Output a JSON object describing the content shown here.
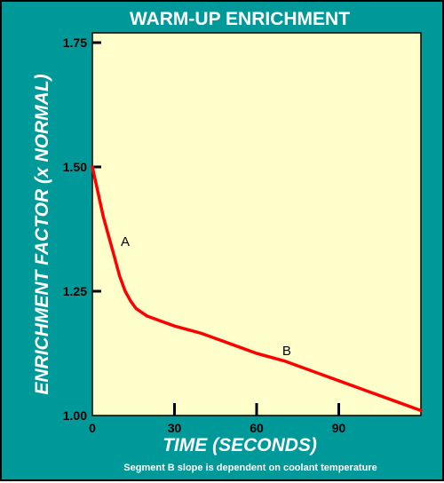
{
  "chart_data": {
    "type": "line",
    "title": "WARM-UP ENRICHMENT",
    "xlabel": "TIME (SECONDS)",
    "ylabel": "ENRICHMENT FACTOR (x NORMAL)",
    "xlim": [
      0,
      120
    ],
    "ylim": [
      1.0,
      1.8
    ],
    "x_ticks": [
      0,
      30,
      60,
      90
    ],
    "x_tick_labels": [
      "0",
      "30",
      "60",
      "90"
    ],
    "y_ticks": [
      1.0,
      1.25,
      1.5,
      1.75
    ],
    "y_tick_labels": [
      "1.00",
      "1.25",
      "1.50",
      "1.75"
    ],
    "grid": false,
    "series": [
      {
        "x": [
          0,
          2,
          4,
          6,
          8,
          10,
          12,
          14,
          16,
          20,
          25,
          30,
          40,
          50,
          60,
          70,
          80,
          90,
          100,
          110,
          120
        ],
        "y": [
          1.5,
          1.45,
          1.4,
          1.36,
          1.32,
          1.28,
          1.25,
          1.23,
          1.215,
          1.2,
          1.19,
          1.18,
          1.165,
          1.145,
          1.125,
          1.11,
          1.09,
          1.07,
          1.05,
          1.03,
          1.01
        ]
      }
    ],
    "annotations": [
      {
        "text": "A",
        "x": 12,
        "y": 1.35
      },
      {
        "text": "B",
        "x": 71,
        "y": 1.13
      }
    ],
    "note": "Segment B slope is dependent on coolant temperature",
    "colors": {
      "background": "#009999",
      "plot_area": "#ffffcc",
      "line": "#ff0000",
      "text_light": "#ffffff",
      "text_dark": "#000000"
    }
  }
}
